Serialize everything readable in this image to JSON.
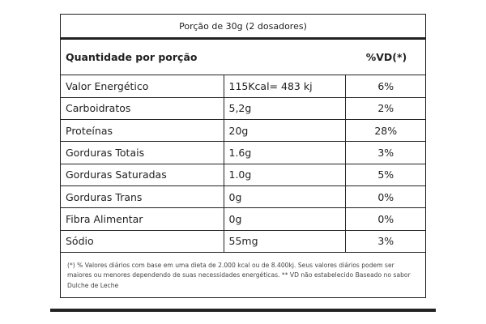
{
  "serving": "Porção de 30g (2 dosadores)",
  "header": {
    "left": "Quantidade por porção",
    "right": "%VD(*)"
  },
  "rows": [
    {
      "name": "Valor Energético",
      "amount": "115Kcal= 483 kj",
      "vd": "6%"
    },
    {
      "name": "Carboidratos",
      "amount": "5,2g",
      "vd": "2%"
    },
    {
      "name": "Proteínas",
      "amount": "20g",
      "vd": "28%"
    },
    {
      "name": "Gorduras Totais",
      "amount": "1.6g",
      "vd": "3%"
    },
    {
      "name": "Gorduras Saturadas",
      "amount": "1.0g",
      "vd": "5%"
    },
    {
      "name": "Gorduras Trans",
      "amount": "0g",
      "vd": "0%"
    },
    {
      "name": "Fibra Alimentar",
      "amount": "0g",
      "vd": "0%"
    },
    {
      "name": "Sódio",
      "amount": "55mg",
      "vd": "3%"
    }
  ],
  "footnote": "(*) % Valores diários com base em uma dieta de 2.000 kcal ou de 8.400kj. Seus valores diários podem ser maiores ou menores dependendo de suas necessidades energéticas. ** VD não estabelecido Baseado no sabor Dulche de Leche"
}
